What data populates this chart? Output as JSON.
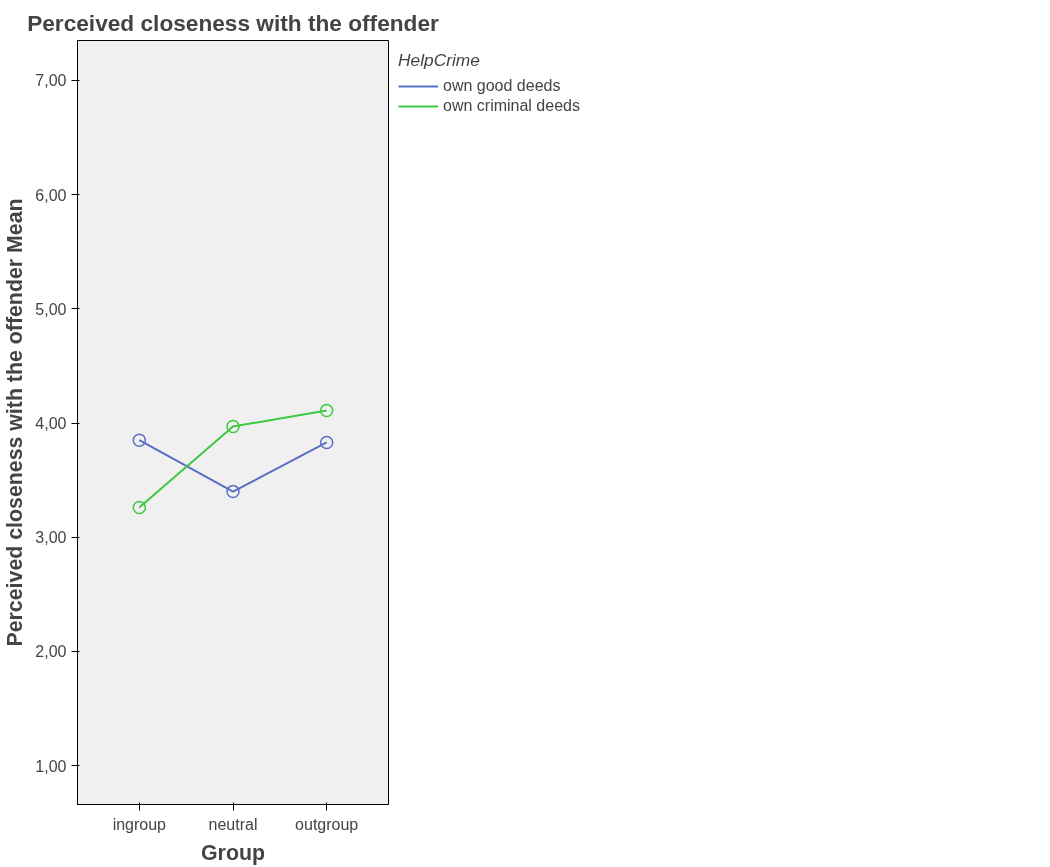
{
  "chart_data": {
    "type": "line",
    "title": "Perceived closeness with the offender",
    "xlabel": "Group",
    "ylabel": "Perceived closeness with the offender Mean",
    "legend_title": "HelpCrime",
    "categories": [
      "ingroup",
      "neutral",
      "outgroup"
    ],
    "series": [
      {
        "name": "own good deeds",
        "color": "#5a6ec4",
        "values": [
          3.85,
          3.4,
          3.83
        ]
      },
      {
        "name": "own criminal deeds",
        "color": "#3ec83e",
        "values": [
          3.26,
          3.97,
          4.11
        ]
      }
    ],
    "ylim": [
      0.66,
      7.35
    ],
    "yticks": [
      {
        "value": 1,
        "label": "1,00"
      },
      {
        "value": 2,
        "label": "2,00"
      },
      {
        "value": 3,
        "label": "3,00"
      },
      {
        "value": 4,
        "label": "4,00"
      },
      {
        "value": 5,
        "label": "5,00"
      },
      {
        "value": 6,
        "label": "6,00"
      },
      {
        "value": 7,
        "label": "7,00"
      }
    ],
    "marker": "circle",
    "line_style": "solid",
    "legend": "top right",
    "grid": false
  }
}
